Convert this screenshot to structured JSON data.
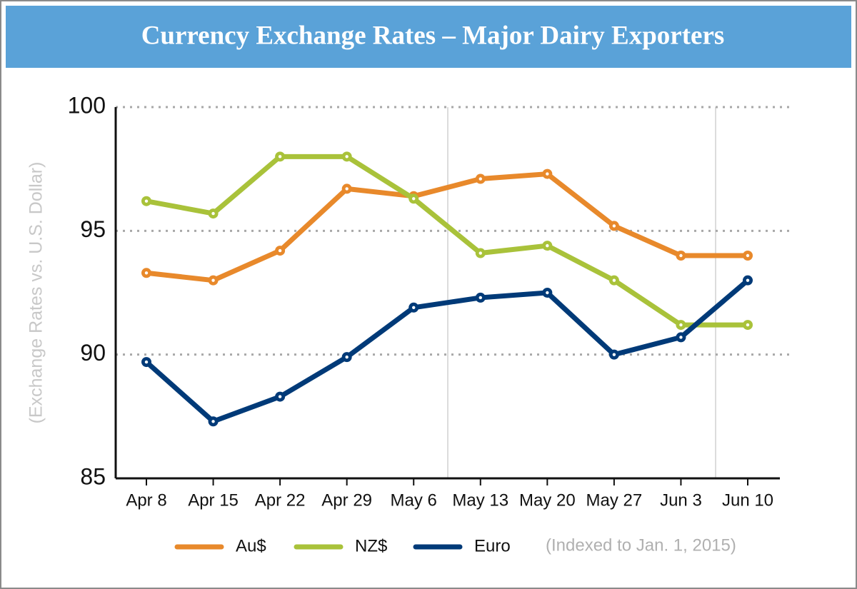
{
  "chart_data": {
    "type": "line",
    "title": "Currency Exchange Rates – Major Dairy Exporters",
    "y_label": "(Exchange Rates vs. U.S. Dollar)",
    "note": "(Indexed to Jan. 1, 2015)",
    "categories": [
      "Apr 8",
      "Apr 15",
      "Apr 22",
      "Apr 29",
      "May 6",
      "May 13",
      "May 20",
      "May 27",
      "Jun 3",
      "Jun 10"
    ],
    "series": [
      {
        "name": "Au$",
        "color": "#e8892b",
        "values": [
          93.3,
          93.0,
          94.2,
          96.7,
          96.4,
          97.1,
          97.3,
          95.2,
          94.0,
          94.0
        ]
      },
      {
        "name": "NZ$",
        "color": "#a9c23a",
        "values": [
          96.2,
          95.7,
          98.0,
          98.0,
          96.3,
          94.1,
          94.4,
          93.0,
          91.2,
          91.2
        ]
      },
      {
        "name": "Euro",
        "color": "#003a78",
        "values": [
          89.7,
          87.3,
          88.3,
          89.9,
          91.9,
          92.3,
          92.5,
          90.0,
          90.7,
          93.0
        ]
      }
    ],
    "ylim": [
      85,
      100
    ],
    "yticks": [
      85,
      90,
      95,
      100
    ],
    "grid": true
  }
}
